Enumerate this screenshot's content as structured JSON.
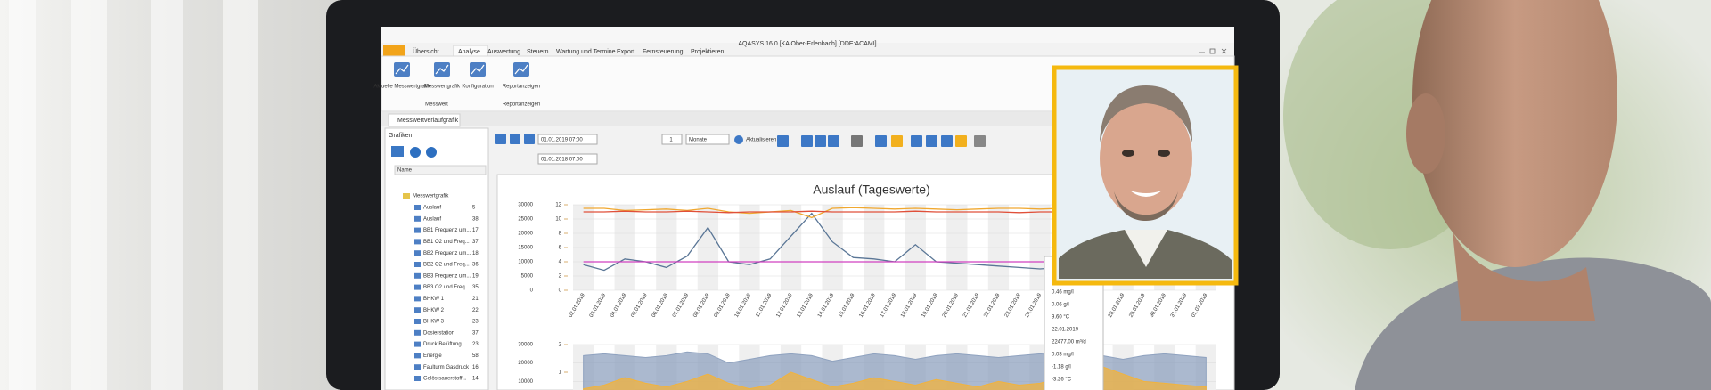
{
  "window_title": "AQASYS 16.0 [KA Ober-Erlenbach] [DDE:ACAMI]",
  "ribbon_tabs": [
    "Übersicht",
    "Analyse",
    "Auswertung",
    "Steuern",
    "Wartung und Termine",
    "Export",
    "Fernsteuerung",
    "Projektieren"
  ],
  "ribbon_buttons": [
    "Aktuelle Messwertgrafik",
    "Messwertgrafik",
    "Konfiguration",
    "Reportanzeigen"
  ],
  "ribbon_groups": [
    "Messwert",
    "Reportanzeigen"
  ],
  "document_tab": "Messwertverlaufgrafik",
  "sidebar": {
    "title": "Grafiken",
    "column": "Name",
    "root": "Messwertgrafik",
    "items": [
      {
        "label": "Auslauf",
        "count": 5
      },
      {
        "label": "Auslauf",
        "count": 38
      },
      {
        "label": "BB1 Frequenz um...",
        "count": 17
      },
      {
        "label": "BB1 O2 und Freq...",
        "count": 37
      },
      {
        "label": "BB2 Frequenz um...",
        "count": 18
      },
      {
        "label": "BB2 O2 und Freq...",
        "count": 36
      },
      {
        "label": "BB3 Frequenz um...",
        "count": 19
      },
      {
        "label": "BB3 O2 und Freq...",
        "count": 35
      },
      {
        "label": "BHKW 1",
        "count": 21
      },
      {
        "label": "BHKW 2",
        "count": 22
      },
      {
        "label": "BHKW 3",
        "count": 23
      },
      {
        "label": "Dosierstation",
        "count": 37
      },
      {
        "label": "Druck Belüftung",
        "count": 23
      },
      {
        "label": "Energie",
        "count": 58
      },
      {
        "label": "Faulturm Gasdruck",
        "count": 16
      },
      {
        "label": "Gelöstsauerstoff...",
        "count": 14
      }
    ]
  },
  "toolbar": {
    "date_from": "01.01.2019 07:00",
    "date_to": "01.01.2018 07:00",
    "step": 1,
    "unit": "Monate",
    "refresh": "Aktualisieren"
  },
  "chart_data": [
    {
      "type": "line",
      "title": "Auslauf (Tageswerte)",
      "categories": [
        "02.01.2019",
        "03.01.2019",
        "04.01.2019",
        "05.01.2019",
        "06.01.2019",
        "07.01.2019",
        "08.01.2019",
        "09.01.2019",
        "10.01.2019",
        "11.01.2019",
        "12.01.2019",
        "13.01.2019",
        "14.01.2019",
        "15.01.2019",
        "16.01.2019",
        "17.01.2019",
        "18.01.2019",
        "19.01.2019",
        "20.01.2019",
        "21.01.2019",
        "22.01.2019",
        "23.01.2019",
        "24.01.2019",
        "25.01.2019",
        "26.01.2019",
        "27.01.2019",
        "28.01.2019",
        "29.01.2019",
        "30.01.2019",
        "31.01.2019",
        "01.02.2019"
      ],
      "ylim": [
        0,
        30000
      ],
      "yticks": [
        0,
        5000,
        10000,
        15000,
        20000,
        25000,
        30000
      ],
      "y2lim": [
        0,
        12
      ],
      "y2ticks": [
        0,
        2,
        4,
        6,
        8,
        10,
        12
      ],
      "series": [
        {
          "color": "#5a7696",
          "values": [
            9000,
            7000,
            11000,
            10000,
            8000,
            12000,
            22000,
            10000,
            9000,
            11000,
            19000,
            27000,
            17000,
            11500,
            11000,
            10000,
            16000,
            10000,
            9500,
            9000,
            8500,
            8000,
            7500,
            8000,
            9000,
            9500,
            8000,
            7000,
            8500,
            9000,
            8000
          ]
        },
        {
          "color": "#f0a830",
          "axis": "y2",
          "values": [
            11.5,
            11.5,
            11.2,
            11.3,
            11.4,
            11.2,
            11.5,
            11,
            10.8,
            11,
            11.2,
            10.2,
            11.5,
            11.6,
            11.5,
            11.4,
            11.5,
            11.4,
            11.3,
            11.4,
            11.5,
            11.5,
            11.4,
            11.5,
            11.5,
            11.4,
            11.5,
            11.5,
            11.4,
            11.5,
            11.5
          ]
        },
        {
          "color": "#e0503a",
          "axis": "y2",
          "values": [
            11,
            11,
            11.1,
            11,
            11,
            11.1,
            11,
            10.9,
            11,
            11,
            11,
            11.1,
            11,
            11,
            11,
            11,
            11.1,
            11,
            11,
            11,
            11,
            10.9,
            11,
            11,
            11,
            11,
            11,
            11,
            11,
            11,
            11
          ]
        },
        {
          "color": "#d040c0",
          "axis": "y2",
          "values": [
            4,
            4,
            4,
            4,
            4,
            4,
            4,
            4,
            4,
            4,
            4,
            4,
            4,
            4,
            4,
            4,
            4,
            4,
            4,
            4,
            4,
            4,
            4,
            4,
            4,
            4,
            4,
            4,
            4,
            4,
            4
          ]
        }
      ]
    },
    {
      "type": "area",
      "ylim": [
        0,
        30000
      ],
      "yticks": [
        10000,
        20000,
        30000
      ],
      "y2lim": [
        0,
        2
      ],
      "y2ticks": [
        0,
        1,
        2
      ],
      "series": [
        {
          "color": "#8fa2bf",
          "values": [
            24000,
            25000,
            24000,
            23000,
            24000,
            26000,
            25000,
            20000,
            22000,
            24000,
            25000,
            24000,
            21000,
            23000,
            25000,
            24000,
            22000,
            24000,
            25000,
            24000,
            23000,
            24000,
            25000,
            24000,
            23000,
            24000,
            22000,
            24000,
            25000,
            24000,
            23000
          ]
        },
        {
          "color": "#f2b33c",
          "values": [
            6000,
            8000,
            12000,
            9000,
            7000,
            10000,
            14000,
            9000,
            6000,
            8000,
            15000,
            11000,
            7000,
            9000,
            12000,
            10000,
            8000,
            11000,
            9000,
            7000,
            10000,
            8000,
            9000,
            12000,
            16000,
            18000,
            14000,
            10000,
            9000,
            8000,
            7000
          ]
        },
        {
          "color": "#8cc26a",
          "values": [
            2000,
            2500,
            3000,
            2000,
            1500,
            2500,
            3000,
            2000,
            1500,
            2000,
            3500,
            2500,
            2000,
            2500,
            3000,
            2000,
            1500,
            2500,
            3000,
            2000,
            2500,
            2000,
            2500,
            3000,
            2500,
            2000,
            2500,
            3000,
            2000,
            2500,
            2000
          ]
        }
      ]
    }
  ],
  "tooltip": [
    "0.46 mg/l",
    "0.06 g/l",
    "9.60 °C",
    "22.01.2019",
    "22477.00 m³/d",
    "0.03 mg/l",
    "-1.18 g/l",
    "-3.26 °C"
  ]
}
